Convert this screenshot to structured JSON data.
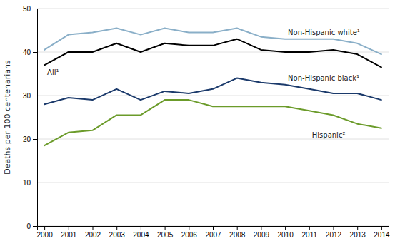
{
  "chart_data": {
    "type": "line",
    "y_label": "Deaths per 100 centenarians",
    "x": [
      2000,
      2001,
      2002,
      2003,
      2004,
      2005,
      2006,
      2007,
      2008,
      2009,
      2010,
      2011,
      2012,
      2013,
      2014
    ],
    "series": [
      {
        "name": "Non-Hispanic white¹",
        "color": "#8AAFC8",
        "values": [
          40.5,
          44.0,
          44.5,
          45.5,
          44.0,
          45.5,
          44.5,
          44.5,
          45.5,
          43.5,
          43.0,
          43.0,
          43.0,
          42.0,
          39.5
        ]
      },
      {
        "name": "All¹",
        "color": "#000000",
        "values": [
          37.0,
          40.0,
          40.0,
          42.0,
          40.0,
          42.0,
          41.5,
          41.5,
          43.0,
          40.5,
          40.0,
          40.0,
          40.5,
          39.5,
          36.5
        ]
      },
      {
        "name": "Non-Hispanic black¹",
        "color": "#1B3A6B",
        "values": [
          28.0,
          29.5,
          29.0,
          31.5,
          29.0,
          31.0,
          30.5,
          31.5,
          34.0,
          33.0,
          32.5,
          31.5,
          30.5,
          30.5,
          29.0
        ]
      },
      {
        "name": "Hispanic²",
        "color": "#6B9B2A",
        "values": [
          18.5,
          21.5,
          22.0,
          25.5,
          25.5,
          29.0,
          29.0,
          27.5,
          27.5,
          27.5,
          27.5,
          26.5,
          25.5,
          23.5,
          22.5
        ]
      }
    ],
    "xlim": [
      1999.7,
      2014.3
    ],
    "xticks": [
      2000,
      2001,
      2002,
      2003,
      2004,
      2005,
      2006,
      2007,
      2008,
      2009,
      2010,
      2011,
      2012,
      2013,
      2014
    ],
    "ylim": [
      0,
      50
    ],
    "yticks": [
      0,
      10,
      20,
      30,
      40,
      50
    ],
    "grid": true
  }
}
